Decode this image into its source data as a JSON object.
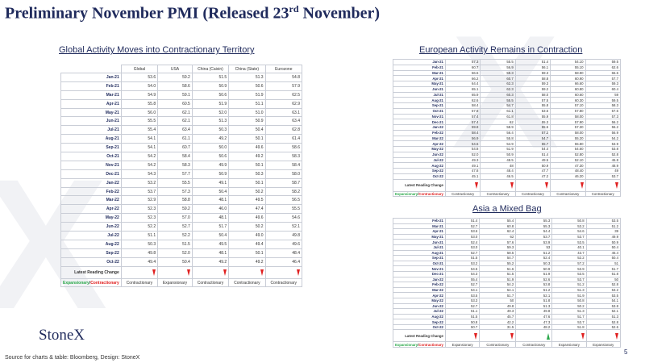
{
  "page": {
    "title": "Preliminary November PMI (Released 23",
    "title_sup": "rd",
    "title_end": " November)",
    "logo": "StoneX",
    "source": "Source for charts & table: Bloomberg, Design: StoneX",
    "page_number": "5"
  },
  "colors": {
    "navy": "#1f2a5c",
    "down_arrow": "#e02020",
    "up_arrow": "#2aa84a"
  },
  "global_table": {
    "title": "Global Activity Moves into Contractionary Territory",
    "headers": [
      "Global",
      "USA",
      "China (Caixin)",
      "China (State)",
      "Eurozone"
    ],
    "rows": [
      [
        "Jan-21",
        "53.6",
        "59.2",
        "51.5",
        "51.3",
        "54.8"
      ],
      [
        "Feb-21",
        "54.0",
        "58.6",
        "50.9",
        "50.6",
        "57.9"
      ],
      [
        "Mar-21",
        "54.9",
        "59.1",
        "50.6",
        "51.9",
        "62.5"
      ],
      [
        "Apr-21",
        "55.8",
        "60.5",
        "51.9",
        "51.1",
        "62.9"
      ],
      [
        "May-21",
        "56.0",
        "62.1",
        "52.0",
        "51.0",
        "63.1"
      ],
      [
        "Jun-21",
        "55.5",
        "62.1",
        "51.3",
        "50.9",
        "63.4"
      ],
      [
        "Jul-21",
        "55.4",
        "63.4",
        "50.3",
        "50.4",
        "62.8"
      ],
      [
        "Aug-21",
        "54.1",
        "61.1",
        "49.2",
        "50.1",
        "61.4"
      ],
      [
        "Sep-21",
        "54.1",
        "60.7",
        "50.0",
        "49.6",
        "58.6"
      ],
      [
        "Oct-21",
        "54.2",
        "58.4",
        "50.6",
        "49.2",
        "58.3"
      ],
      [
        "Nov-21",
        "54.2",
        "58.3",
        "49.9",
        "50.1",
        "58.4"
      ],
      [
        "Dec-21",
        "54.3",
        "57.7",
        "50.9",
        "50.3",
        "58.0"
      ],
      [
        "Jan-22",
        "53.2",
        "55.5",
        "49.1",
        "50.1",
        "58.7"
      ],
      [
        "Feb-22",
        "53.7",
        "57.3",
        "50.4",
        "50.2",
        "58.2"
      ],
      [
        "Mar-22",
        "52.9",
        "58.8",
        "48.1",
        "49.5",
        "56.5"
      ],
      [
        "Apr-22",
        "52.3",
        "59.2",
        "46.0",
        "47.4",
        "55.5"
      ],
      [
        "May-22",
        "52.3",
        "57.0",
        "48.1",
        "49.6",
        "54.6"
      ],
      [
        "Jun-22",
        "52.2",
        "52.7",
        "51.7",
        "50.2",
        "52.1"
      ],
      [
        "Jul-22",
        "51.1",
        "52.2",
        "50.4",
        "49.0",
        "49.8"
      ],
      [
        "Aug-22",
        "50.3",
        "51.5",
        "49.5",
        "49.4",
        "49.6"
      ],
      [
        "Sep-22",
        "49.8",
        "52.0",
        "48.1",
        "50.1",
        "48.4"
      ],
      [
        "Oct-22",
        "49.4",
        "50.4",
        "49.2",
        "49.2",
        "46.4"
      ]
    ],
    "reading_change_label": "Latest Reading Change",
    "arrows": [
      "down",
      "down",
      "down",
      "down",
      "down"
    ],
    "legend_expansionary": "Expansionary",
    "legend_sep": "/",
    "legend_contractionary": "Contractionary",
    "status": [
      "Contractionary",
      "Expansionary",
      "Contractionary",
      "Contractionary",
      "Contractionary"
    ]
  },
  "eu_table": {
    "title": "European Activity Remains in Contraction",
    "rows": [
      [
        "Jan-21",
        "57.3",
        "55.5",
        "51.4",
        "54.10",
        "59.5"
      ],
      [
        "Feb-21",
        "60.7",
        "56.9",
        "56.1",
        "55.10",
        "62.6"
      ],
      [
        "Mar-21",
        "66.6",
        "59.3",
        "59.3",
        "58.90",
        "66.6"
      ],
      [
        "Apr-21",
        "66.2",
        "60.7",
        "58.8",
        "60.90",
        "57.7"
      ],
      [
        "May-21",
        "64.4",
        "62.3",
        "59.3",
        "66.60",
        "59.3"
      ],
      [
        "Jun-21",
        "65.1",
        "62.3",
        "59.2",
        "60.80",
        "60.4"
      ],
      [
        "Jul-21",
        "65.9",
        "60.3",
        "58.0",
        "60.60",
        "59"
      ],
      [
        "Aug-21",
        "62.6",
        "55.5",
        "57.5",
        "60.30",
        "59.5"
      ],
      [
        "Sep-21",
        "58.4",
        "54.7",
        "55.8",
        "57.10",
        "58.3"
      ],
      [
        "Oct-21",
        "57.8",
        "61.1",
        "53.6",
        "57.80",
        "57.6"
      ],
      [
        "Nov-21",
        "57.4",
        "61.8",
        "55.9",
        "58.00",
        "57.3"
      ],
      [
        "Dec-21",
        "57.4",
        "62",
        "55.3",
        "57.90",
        "56.2"
      ],
      [
        "Jan-22",
        "59.8",
        "58.9",
        "55.5",
        "57.30",
        "56.2"
      ],
      [
        "Feb-22",
        "58.4",
        "56.4",
        "57.2",
        "58.00",
        "56.9"
      ],
      [
        "Mar-22",
        "56.9",
        "55.8",
        "54.7",
        "55.20",
        "54.2"
      ],
      [
        "Apr-22",
        "54.6",
        "54.9",
        "55.7",
        "55.80",
        "53.9"
      ],
      [
        "May-22",
        "54.8",
        "51.9",
        "54.4",
        "54.60",
        "53.8"
      ],
      [
        "Jun-22",
        "52.0",
        "50.9",
        "51.4",
        "52.80",
        "52.8"
      ],
      [
        "Jul-22",
        "49.3",
        "48.5",
        "49.5",
        "52.10",
        "46.8"
      ],
      [
        "Aug-22",
        "49.1",
        "48",
        "50.9",
        "47.30",
        "48.9"
      ],
      [
        "Sep-22",
        "47.8",
        "48.4",
        "47.7",
        "48.40",
        "49"
      ],
      [
        "Oct-22",
        "45.1",
        "46.5",
        "47.2",
        "46.20",
        "53.7"
      ]
    ],
    "reading_change_label": "Latest Reading Change",
    "arrows": [
      "down",
      "down",
      "down",
      "down",
      "down"
    ],
    "legend_expansionary": "Expansionary",
    "legend_sep": "/",
    "legend_contractionary": "Contractionary",
    "status": [
      "Contractionary",
      "Contractionary",
      "Contractionary",
      "Contractionary",
      "Contractionary"
    ]
  },
  "asia_table": {
    "title": "Asia a Mixed Bag",
    "rows": [
      [
        "Feb-21",
        "51.4",
        "55.4",
        "55.3",
        "50.8",
        "53.5"
      ],
      [
        "Mar-21",
        "52.7",
        "60.8",
        "55.3",
        "53.2",
        "51.2"
      ],
      [
        "Apr-21",
        "53.6",
        "62.4",
        "54.4",
        "54.6",
        "39"
      ],
      [
        "May-21",
        "53.0",
        "62",
        "53.7",
        "53.7",
        "49.9"
      ],
      [
        "Jun-21",
        "52.4",
        "57.6",
        "53.9",
        "53.5",
        "50.9"
      ],
      [
        "Jul-21",
        "53.0",
        "59.3",
        "53",
        "40.1",
        "50.4"
      ],
      [
        "Aug-21",
        "52.7",
        "58.5",
        "51.2",
        "43.7",
        "46.4"
      ],
      [
        "Sep-21",
        "51.5",
        "54.7",
        "52.4",
        "52.2",
        "50.4"
      ],
      [
        "Oct-21",
        "53.2",
        "55.2",
        "50.3",
        "57.2",
        "51"
      ],
      [
        "Nov-21",
        "54.5",
        "51.6",
        "50.9",
        "53.9",
        "51.7"
      ],
      [
        "Dec-21",
        "54.3",
        "51.5",
        "51.9",
        "53.5",
        "51.8"
      ],
      [
        "Jan-22",
        "55.4",
        "51.9",
        "52.6",
        "53.7",
        "50"
      ],
      [
        "Feb-22",
        "52.7",
        "54.2",
        "53.8",
        "51.2",
        "52.8"
      ],
      [
        "Mar-22",
        "54.1",
        "54.1",
        "51.2",
        "51.3",
        "53.2"
      ],
      [
        "Apr-22",
        "53.5",
        "51.7",
        "52.1",
        "51.9",
        "53.5"
      ],
      [
        "May-22",
        "53.3",
        "50",
        "51.8",
        "50.8",
        "54.1"
      ],
      [
        "Jun-22",
        "52.7",
        "49.8",
        "51.3",
        "50.2",
        "53.8"
      ],
      [
        "Jul-22",
        "51.1",
        "49.3",
        "49.8",
        "51.3",
        "52.1"
      ],
      [
        "Aug-22",
        "51.5",
        "45.7",
        "47.6",
        "51.7",
        "51.3"
      ],
      [
        "Sep-22",
        "50.8",
        "42.2",
        "47.3",
        "53.7",
        "52.8"
      ],
      [
        "Oct-22",
        "50.7",
        "31.5",
        "48.2",
        "51.8",
        "52.6"
      ]
    ],
    "reading_change_label": "Latest Reading Change",
    "arrows": [
      "down",
      "down",
      "up",
      "down",
      "down"
    ],
    "legend_expansionary": "Expansionary",
    "legend_sep": "/",
    "legend_contractionary": "Contractionary",
    "status": [
      "Expansionary",
      "Contractionary",
      "Contractionary",
      "Expansionary",
      "Expansionary"
    ]
  }
}
